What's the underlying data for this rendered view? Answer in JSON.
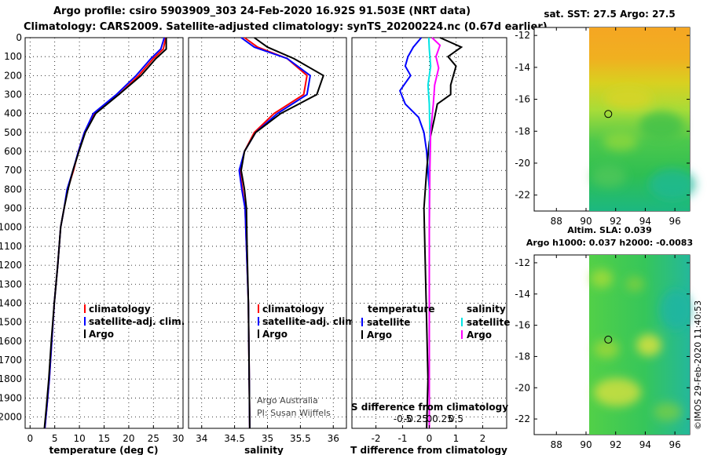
{
  "header": {
    "title_line1": "Argo profile: csiro 5903909_303 24-Feb-2020 16.92S 91.503E (NRT data)",
    "title_line2": "Climatology: CARS2009. Satellite-adjusted climatology: synTS_20200224.nc (0.67d earlier)"
  },
  "colors": {
    "climatology": "#ff0000",
    "satellite": "#0000ff",
    "argo": "#000000",
    "sal_satellite": "#00e5e5",
    "sal_argo": "#ff00ff"
  },
  "depth_axis": {
    "ticks": [
      "0",
      "100",
      "200",
      "300",
      "400",
      "500",
      "600",
      "700",
      "800",
      "900",
      "1000",
      "1100",
      "1200",
      "1300",
      "1400",
      "1500",
      "1600",
      "1700",
      "1800",
      "1900",
      "2000"
    ]
  },
  "chart_data": [
    {
      "type": "line",
      "id": "temperature",
      "xlabel": "temperature (deg C)",
      "ylabel": "",
      "xlim": [
        -1,
        31
      ],
      "ylim": [
        2060,
        0
      ],
      "xticks": [
        "0",
        "5",
        "10",
        "15",
        "20",
        "25",
        "30"
      ],
      "legend": [
        "climatology",
        "satellite-adj. clim.",
        "Argo"
      ],
      "series": [
        {
          "name": "climatology",
          "color": "#ff0000",
          "points": [
            [
              27.5,
              0
            ],
            [
              27.0,
              60
            ],
            [
              25.0,
              110
            ],
            [
              22.0,
              200
            ],
            [
              18.0,
              300
            ],
            [
              13.0,
              400
            ],
            [
              11.0,
              500
            ],
            [
              9.8,
              600
            ],
            [
              8.8,
              700
            ],
            [
              7.6,
              800
            ],
            [
              6.9,
              900
            ],
            [
              6.2,
              1000
            ],
            [
              5.6,
              1200
            ],
            [
              4.9,
              1400
            ],
            [
              4.4,
              1600
            ],
            [
              3.9,
              1800
            ],
            [
              3.4,
              1950
            ],
            [
              3.0,
              2060
            ]
          ]
        },
        {
          "name": "satellite-adj. clim.",
          "color": "#0000ff",
          "points": [
            [
              27.2,
              0
            ],
            [
              26.5,
              60
            ],
            [
              24.5,
              110
            ],
            [
              21.5,
              200
            ],
            [
              17.5,
              300
            ],
            [
              12.8,
              400
            ],
            [
              11.0,
              500
            ],
            [
              9.8,
              600
            ],
            [
              8.7,
              700
            ],
            [
              7.5,
              800
            ],
            [
              6.9,
              900
            ],
            [
              6.2,
              1000
            ],
            [
              5.6,
              1200
            ],
            [
              4.9,
              1400
            ],
            [
              4.4,
              1600
            ],
            [
              3.9,
              1800
            ],
            [
              3.4,
              1950
            ],
            [
              3.0,
              2060
            ]
          ]
        },
        {
          "name": "Argo",
          "color": "#000000",
          "points": [
            [
              27.6,
              0
            ],
            [
              27.6,
              60
            ],
            [
              25.5,
              110
            ],
            [
              22.5,
              200
            ],
            [
              18.0,
              300
            ],
            [
              13.3,
              400
            ],
            [
              11.2,
              500
            ],
            [
              9.9,
              600
            ],
            [
              8.7,
              700
            ],
            [
              7.7,
              800
            ],
            [
              6.9,
              900
            ],
            [
              6.2,
              1000
            ],
            [
              5.6,
              1200
            ],
            [
              4.9,
              1400
            ],
            [
              4.3,
              1600
            ],
            [
              3.8,
              1800
            ],
            [
              3.3,
              1950
            ],
            [
              2.9,
              2060
            ]
          ]
        }
      ]
    },
    {
      "type": "line",
      "id": "salinity",
      "xlabel": "salinity",
      "ylabel": "",
      "xlim": [
        33.8,
        36.2
      ],
      "ylim": [
        2060,
        0
      ],
      "xticks": [
        "34",
        "34.5",
        "35",
        "35.5",
        "36"
      ],
      "legend": [
        "climatology",
        "satellite-adj. clim.",
        "Argo"
      ],
      "series": [
        {
          "name": "climatology",
          "color": "#ff0000",
          "points": [
            [
              34.65,
              0
            ],
            [
              34.85,
              50
            ],
            [
              35.3,
              110
            ],
            [
              35.6,
              200
            ],
            [
              35.55,
              300
            ],
            [
              35.1,
              400
            ],
            [
              34.8,
              500
            ],
            [
              34.65,
              600
            ],
            [
              34.58,
              700
            ],
            [
              34.62,
              800
            ],
            [
              34.66,
              900
            ],
            [
              34.68,
              1100
            ],
            [
              34.71,
              1400
            ],
            [
              34.72,
              1700
            ],
            [
              34.73,
              2060
            ]
          ]
        },
        {
          "name": "satellite-adj. clim.",
          "color": "#0000ff",
          "points": [
            [
              34.6,
              0
            ],
            [
              34.8,
              50
            ],
            [
              35.3,
              110
            ],
            [
              35.65,
              200
            ],
            [
              35.6,
              300
            ],
            [
              35.15,
              400
            ],
            [
              34.82,
              500
            ],
            [
              34.65,
              600
            ],
            [
              34.57,
              700
            ],
            [
              34.61,
              800
            ],
            [
              34.66,
              900
            ],
            [
              34.68,
              1100
            ],
            [
              34.71,
              1400
            ],
            [
              34.72,
              1700
            ],
            [
              34.73,
              2060
            ]
          ]
        },
        {
          "name": "Argo",
          "color": "#000000",
          "points": [
            [
              34.8,
              0
            ],
            [
              35.0,
              50
            ],
            [
              35.4,
              110
            ],
            [
              35.85,
              200
            ],
            [
              35.75,
              300
            ],
            [
              35.2,
              400
            ],
            [
              34.82,
              500
            ],
            [
              34.65,
              600
            ],
            [
              34.6,
              700
            ],
            [
              34.65,
              800
            ],
            [
              34.68,
              900
            ],
            [
              34.69,
              1100
            ],
            [
              34.71,
              1400
            ],
            [
              34.72,
              1700
            ],
            [
              34.73,
              2060
            ]
          ]
        }
      ],
      "annotation": [
        "Argo Australia",
        "PI: Susan Wijffels"
      ]
    },
    {
      "type": "line",
      "id": "differences",
      "xlabel": "T difference from climatology",
      "ylabel": "",
      "xlim": [
        -2.9,
        2.9
      ],
      "ylim": [
        2060,
        0
      ],
      "xticks": [
        "-2",
        "-1",
        "0",
        "1",
        "2"
      ],
      "secondary_xlabel": "S difference from climatology",
      "secondary_xticks": [
        "-0.5",
        "-0.25",
        "0",
        "0.25",
        "0.5"
      ],
      "legend": {
        "temperature_heading": "temperature",
        "salinity_heading": "salinity",
        "entries": [
          "satellite",
          "Argo",
          "satellite",
          "Argo"
        ]
      },
      "series": [
        {
          "name": "temperature satellite",
          "color": "#0000ff",
          "points": [
            [
              -0.3,
              0
            ],
            [
              -0.6,
              50
            ],
            [
              -0.8,
              100
            ],
            [
              -0.9,
              150
            ],
            [
              -0.7,
              200
            ],
            [
              -1.1,
              280
            ],
            [
              -0.9,
              350
            ],
            [
              -0.4,
              420
            ],
            [
              -0.2,
              500
            ],
            [
              -0.1,
              600
            ],
            [
              0.0,
              800
            ],
            [
              0.0,
              2060
            ]
          ]
        },
        {
          "name": "temperature Argo",
          "color": "#000000",
          "points": [
            [
              0.4,
              0
            ],
            [
              1.2,
              50
            ],
            [
              0.7,
              100
            ],
            [
              1.0,
              150
            ],
            [
              0.9,
              200
            ],
            [
              0.8,
              250
            ],
            [
              0.8,
              300
            ],
            [
              0.3,
              350
            ],
            [
              0.2,
              420
            ],
            [
              0.0,
              550
            ],
            [
              -0.1,
              700
            ],
            [
              -0.2,
              900
            ],
            [
              -0.15,
              1200
            ],
            [
              -0.1,
              1500
            ],
            [
              -0.05,
              1800
            ],
            [
              -0.1,
              2060
            ]
          ]
        },
        {
          "name": "salinity satellite",
          "color": "#00e5e5",
          "points": [
            [
              -0.02,
              0
            ],
            [
              0.0,
              60
            ],
            [
              0.05,
              150
            ],
            [
              -0.05,
              250
            ],
            [
              0.0,
              350
            ],
            [
              0.02,
              500
            ],
            [
              0.0,
              800
            ],
            [
              0.0,
              2060
            ]
          ]
        },
        {
          "name": "salinity Argo",
          "color": "#ff00ff",
          "points": [
            [
              0.1,
              0
            ],
            [
              0.4,
              40
            ],
            [
              0.25,
              100
            ],
            [
              0.35,
              160
            ],
            [
              0.2,
              250
            ],
            [
              0.15,
              350
            ],
            [
              0.05,
              500
            ],
            [
              0.02,
              700
            ],
            [
              0.0,
              1000
            ],
            [
              0.0,
              2060
            ]
          ]
        }
      ]
    },
    {
      "type": "heatmap",
      "id": "sst_map",
      "title": "sat. SST: 27.5 Argo: 27.5",
      "xticks": [
        "88",
        "90",
        "92",
        "94",
        "96"
      ],
      "yticks": [
        "-12",
        "-14",
        "-16",
        "-18",
        "-20",
        "-22"
      ],
      "xlim": [
        86.5,
        97
      ],
      "ylim": [
        -23,
        -11.5
      ],
      "marker": {
        "lon": 91.5,
        "lat": -16.92
      }
    },
    {
      "type": "heatmap",
      "id": "sla_map",
      "title": "Altim. SLA: 0.039",
      "subtitle": "Argo h1000: 0.037 h2000: -0.0083",
      "xticks": [
        "88",
        "90",
        "92",
        "94",
        "96"
      ],
      "yticks": [
        "-12",
        "-14",
        "-16",
        "-18",
        "-20",
        "-22"
      ],
      "xlim": [
        86.5,
        97
      ],
      "ylim": [
        -23,
        -11.5
      ],
      "marker": {
        "lon": 91.5,
        "lat": -16.92
      }
    }
  ],
  "credit": "©IMOS 29-Feb-2020 11:40:53"
}
